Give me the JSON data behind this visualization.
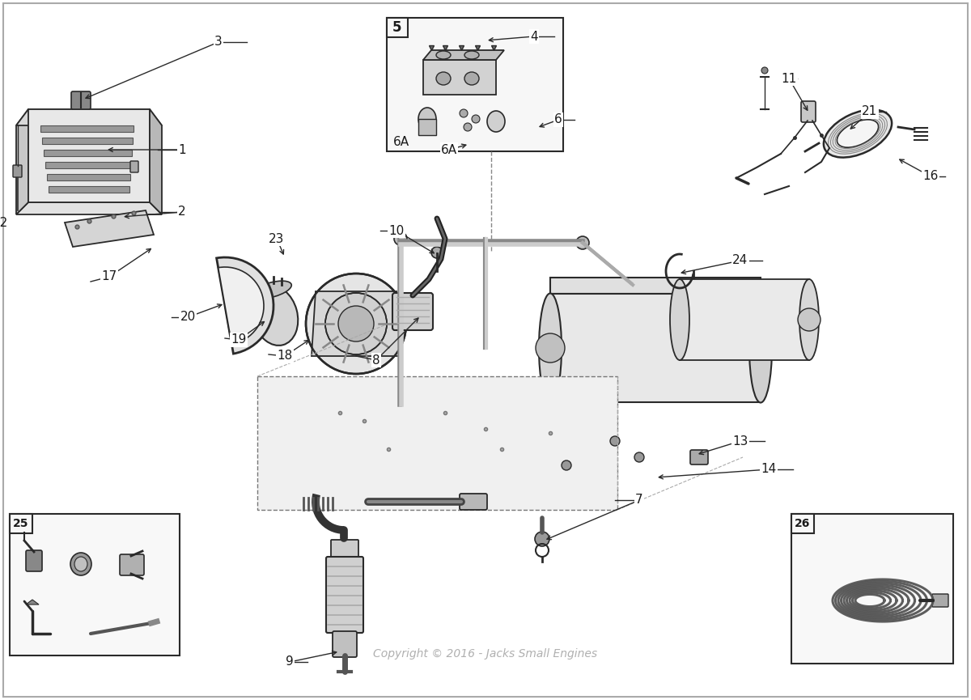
{
  "background_color": "#ffffff",
  "border_color": "#aaaaaa",
  "line_color": "#2a2a2a",
  "label_color": "#1a1a1a",
  "gray_fill": "#d8d8d8",
  "light_fill": "#eeeeee",
  "copyright_text": "Copyright © 2016 - Jacks Small Engines",
  "copyright_color": "#b0b0b0",
  "copyright_fontsize": 10,
  "figsize": [
    12.0,
    8.65
  ],
  "dpi": 100,
  "label_fontsize": 11
}
